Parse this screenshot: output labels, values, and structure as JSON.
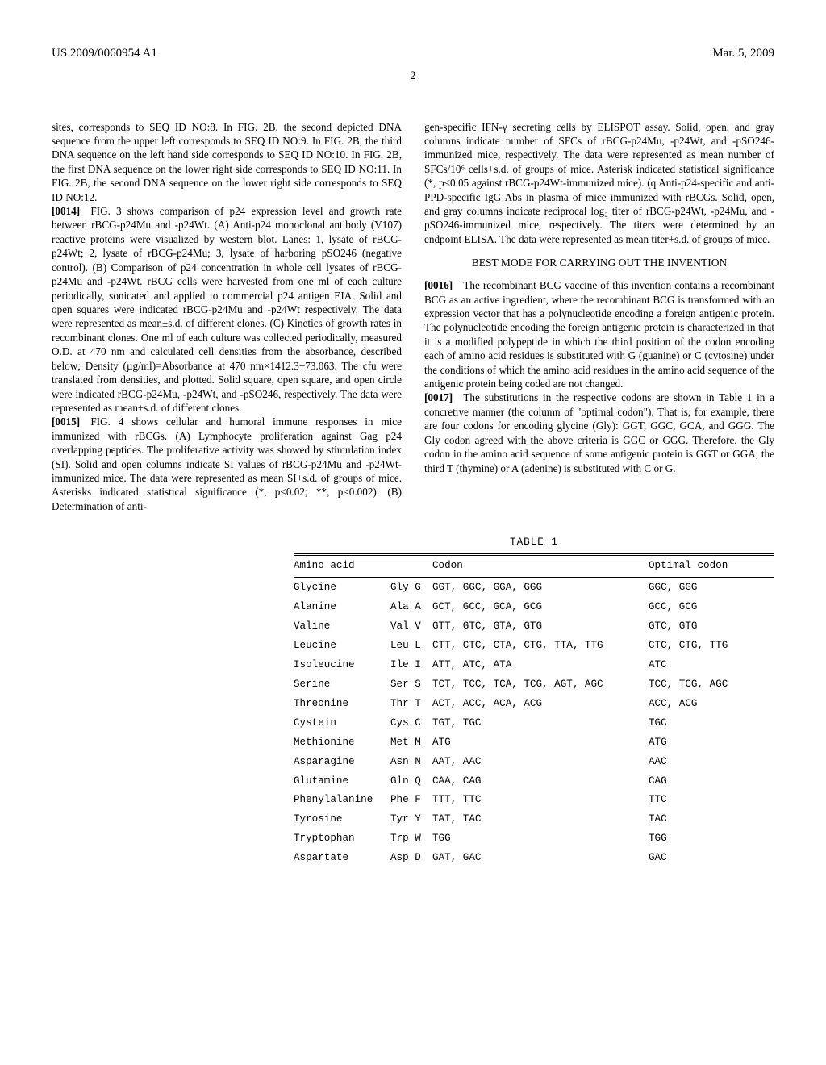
{
  "header": {
    "left": "US 2009/0060954 A1",
    "right": "Mar. 5, 2009",
    "page_number": "2"
  },
  "col_left": {
    "p0": "sites, corresponds to SEQ ID NO:8. In FIG. 2B, the second depicted DNA sequence from the upper left corresponds to SEQ ID NO:9. In FIG. 2B, the third DNA sequence on the left hand side corresponds to SEQ ID NO:10. In FIG. 2B, the first DNA sequence on the lower right side corresponds to SEQ ID NO:11. In FIG. 2B, the second DNA sequence on the lower right side corresponds to SEQ ID NO:12.",
    "p0014_num": "[0014]",
    "p0014": " FIG. 3 shows comparison of p24 expression level and growth rate between rBCG-p24Mu and -p24Wt. (A) Anti-p24 monoclonal antibody (V107) reactive proteins were visualized by western blot. Lanes: 1, lysate of rBCG-p24Wt; 2, lysate of rBCG-p24Mu; 3, lysate of harboring pSO246 (negative control). (B) Comparison of p24 concentration in whole cell lysates of rBCG-p24Mu and -p24Wt. rBCG cells were harvested from one ml of each culture periodically, sonicated and applied to commercial p24 antigen EIA. Solid and open squares were indicated rBCG-p24Mu and -p24Wt respectively. The data were represented as mean±s.d. of different clones. (C) Kinetics of growth rates in recombinant clones. One ml of each culture was collected periodically, measured O.D. at 470 nm and calculated cell densities from the absorbance, described below; Density (µg/ml)=Absorbance at 470 nm×1412.3+73.063. The cfu were translated from densities, and plotted. Solid square, open square, and open circle were indicated rBCG-p24Mu, -p24Wt, and -pSO246, respectively. The data were represented as mean±s.d. of different clones.",
    "p0015_num": "[0015]",
    "p0015": " FIG. 4 shows cellular and humoral immune responses in mice immunized with rBCGs. (A) Lymphocyte proliferation against Gag p24 overlapping peptides. The proliferative activity was showed by stimulation index (SI). Solid and open columns indicate SI values of rBCG-p24Mu and -p24Wt-immunized mice. The data were represented as mean SI+s.d. of groups of mice. Asterisks indicated statistical significance (*, p<0.02; **, p<0.002). (B) Determination of anti-"
  },
  "col_right": {
    "p_cont": "gen-specific IFN-γ secreting cells by ELISPOT assay. Solid, open, and gray columns indicate number of SFCs of rBCG-p24Mu, -p24Wt, and -pSO246-immunized mice, respectively. The data were represented as mean number of SFCs/10⁶ cells+s.d. of groups of mice. Asterisk indicated statistical significance (*, p<0.05 against rBCG-p24Wt-immunized mice). (q Anti-p24-specific and anti-PPD-specific IgG Abs in plasma of mice immunized with rBCGs. Solid, open, and gray columns indicate reciprocal log₂ titer of rBCG-p24Wt, -p24Mu, and -pSO246-immunized mice, respectively. The titers were determined by an endpoint ELISA. The data were represented as mean titer+s.d. of groups of mice.",
    "heading": "BEST MODE FOR CARRYING OUT THE INVENTION",
    "p0016_num": "[0016]",
    "p0016": " The recombinant BCG vaccine of this invention contains a recombinant BCG as an active ingredient, where the recombinant BCG is transformed with an expression vector that has a polynucleotide encoding a foreign antigenic protein. The polynucleotide encoding the foreign antigenic protein is characterized in that it is a modified polypeptide in which the third position of the codon encoding each of amino acid residues is substituted with G (guanine) or C (cytosine) under the conditions of which the amino acid residues in the amino acid sequence of the antigenic protein being coded are not changed.",
    "p0017_num": "[0017]",
    "p0017": " The substitutions in the respective codons are shown in Table 1 in a concretive manner (the column of \"optimal codon\"). That is, for example, there are four codons for encoding glycine (Gly): GGT, GGC, GCA, and GGG. The Gly codon agreed with the above criteria is GGC or GGG. Therefore, the Gly codon in the amino acid sequence of some antigenic protein is GGT or GGA, the third T (thymine) or A (adenine) is substituted with C or G."
  },
  "table": {
    "label": "TABLE 1",
    "head_aa": "Amino acid",
    "head_codon": "Codon",
    "head_opt": "Optimal codon",
    "rows": [
      {
        "aa": "Glycine",
        "abbr": "Gly G",
        "codon": "GGT, GGC, GGA, GGG",
        "opt": "GGC, GGG"
      },
      {
        "aa": "Alanine",
        "abbr": "Ala A",
        "codon": "GCT, GCC, GCA, GCG",
        "opt": "GCC, GCG"
      },
      {
        "aa": "Valine",
        "abbr": "Val V",
        "codon": "GTT, GTC, GTA, GTG",
        "opt": "GTC, GTG"
      },
      {
        "aa": "Leucine",
        "abbr": "Leu L",
        "codon": "CTT, CTC, CTA, CTG, TTA, TTG",
        "opt": "CTC, CTG, TTG"
      },
      {
        "aa": "Isoleucine",
        "abbr": "Ile I",
        "codon": "ATT, ATC, ATA",
        "opt": "ATC"
      },
      {
        "aa": "Serine",
        "abbr": "Ser S",
        "codon": "TCT, TCC, TCA, TCG, AGT, AGC",
        "opt": "TCC, TCG, AGC"
      },
      {
        "aa": "Threonine",
        "abbr": "Thr T",
        "codon": "ACT, ACC, ACA, ACG",
        "opt": "ACC, ACG"
      },
      {
        "aa": "Cystein",
        "abbr": "Cys C",
        "codon": "TGT, TGC",
        "opt": "TGC"
      },
      {
        "aa": "Methionine",
        "abbr": "Met M",
        "codon": "ATG",
        "opt": "ATG"
      },
      {
        "aa": "Asparagine",
        "abbr": "Asn N",
        "codon": "AAT, AAC",
        "opt": "AAC"
      },
      {
        "aa": "Glutamine",
        "abbr": "Gln Q",
        "codon": "CAA, CAG",
        "opt": "CAG"
      },
      {
        "aa": "Phenylalanine",
        "abbr": "Phe F",
        "codon": "TTT, TTC",
        "opt": "TTC"
      },
      {
        "aa": "Tyrosine",
        "abbr": "Tyr Y",
        "codon": "TAT, TAC",
        "opt": "TAC"
      },
      {
        "aa": "Tryptophan",
        "abbr": "Trp W",
        "codon": "TGG",
        "opt": "TGG"
      },
      {
        "aa": "Aspartate",
        "abbr": "Asp D",
        "codon": "GAT, GAC",
        "opt": "GAC"
      }
    ]
  }
}
